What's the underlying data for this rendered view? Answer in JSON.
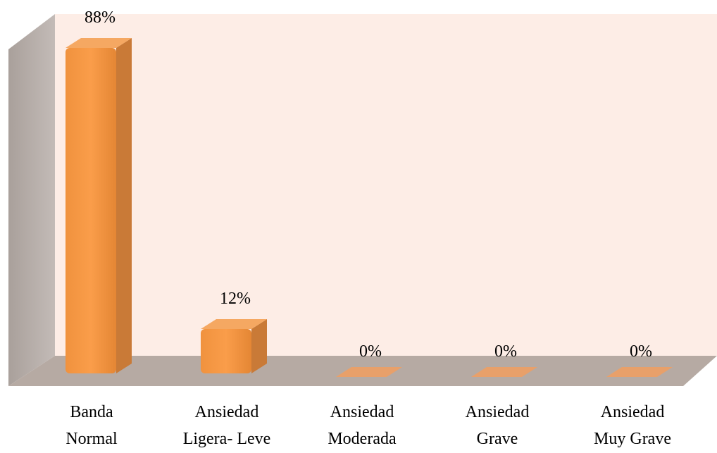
{
  "chart_data": {
    "type": "bar3d",
    "categories": [
      "Banda Normal",
      "Ansiedad Ligera- Leve",
      "Ansiedad Moderada",
      "Ansiedad Grave",
      "Ansiedad Muy Grave"
    ],
    "values": [
      88,
      12,
      0,
      0,
      0
    ],
    "value_labels": [
      "88%",
      "12%",
      "0%",
      "0%",
      "0%"
    ],
    "color": "#f79646"
  }
}
